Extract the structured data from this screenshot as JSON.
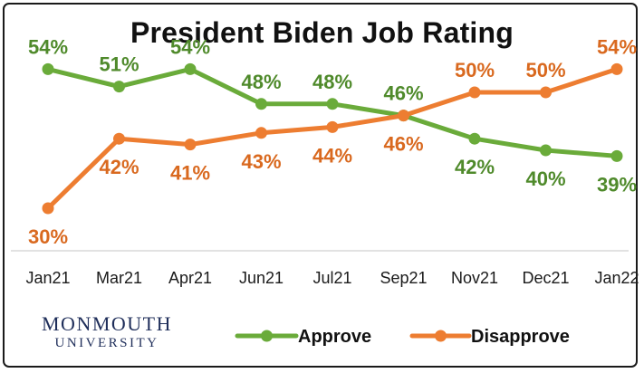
{
  "title": "President Biden Job Rating",
  "logo": {
    "line1": "MONMOUTH",
    "line2": "UNIVERSITY"
  },
  "chart_data": {
    "type": "line",
    "title": "President Biden Job Rating",
    "xlabel": "",
    "ylabel": "",
    "categories": [
      "Jan21",
      "Mar21",
      "Apr21",
      "Jun21",
      "Jul21",
      "Sep21",
      "Nov21",
      "Dec21",
      "Jan22"
    ],
    "ylim": [
      25,
      60
    ],
    "grid": false,
    "legend": "bottom",
    "series": [
      {
        "name": "Approve",
        "color": "#6aab3a",
        "label_color": "#4f8a2b",
        "values": [
          54,
          51,
          54,
          48,
          48,
          46,
          42,
          40,
          39
        ],
        "labels": [
          "54%",
          "51%",
          "54%",
          "48%",
          "48%",
          "46%",
          "42%",
          "40%",
          "39%"
        ]
      },
      {
        "name": "Disapprove",
        "color": "#ed7d31",
        "label_color": "#d9691f",
        "values": [
          30,
          42,
          41,
          43,
          44,
          46,
          50,
          50,
          54
        ],
        "labels": [
          "30%",
          "42%",
          "41%",
          "43%",
          "44%",
          "46%",
          "50%",
          "50%",
          "54%"
        ]
      }
    ]
  }
}
